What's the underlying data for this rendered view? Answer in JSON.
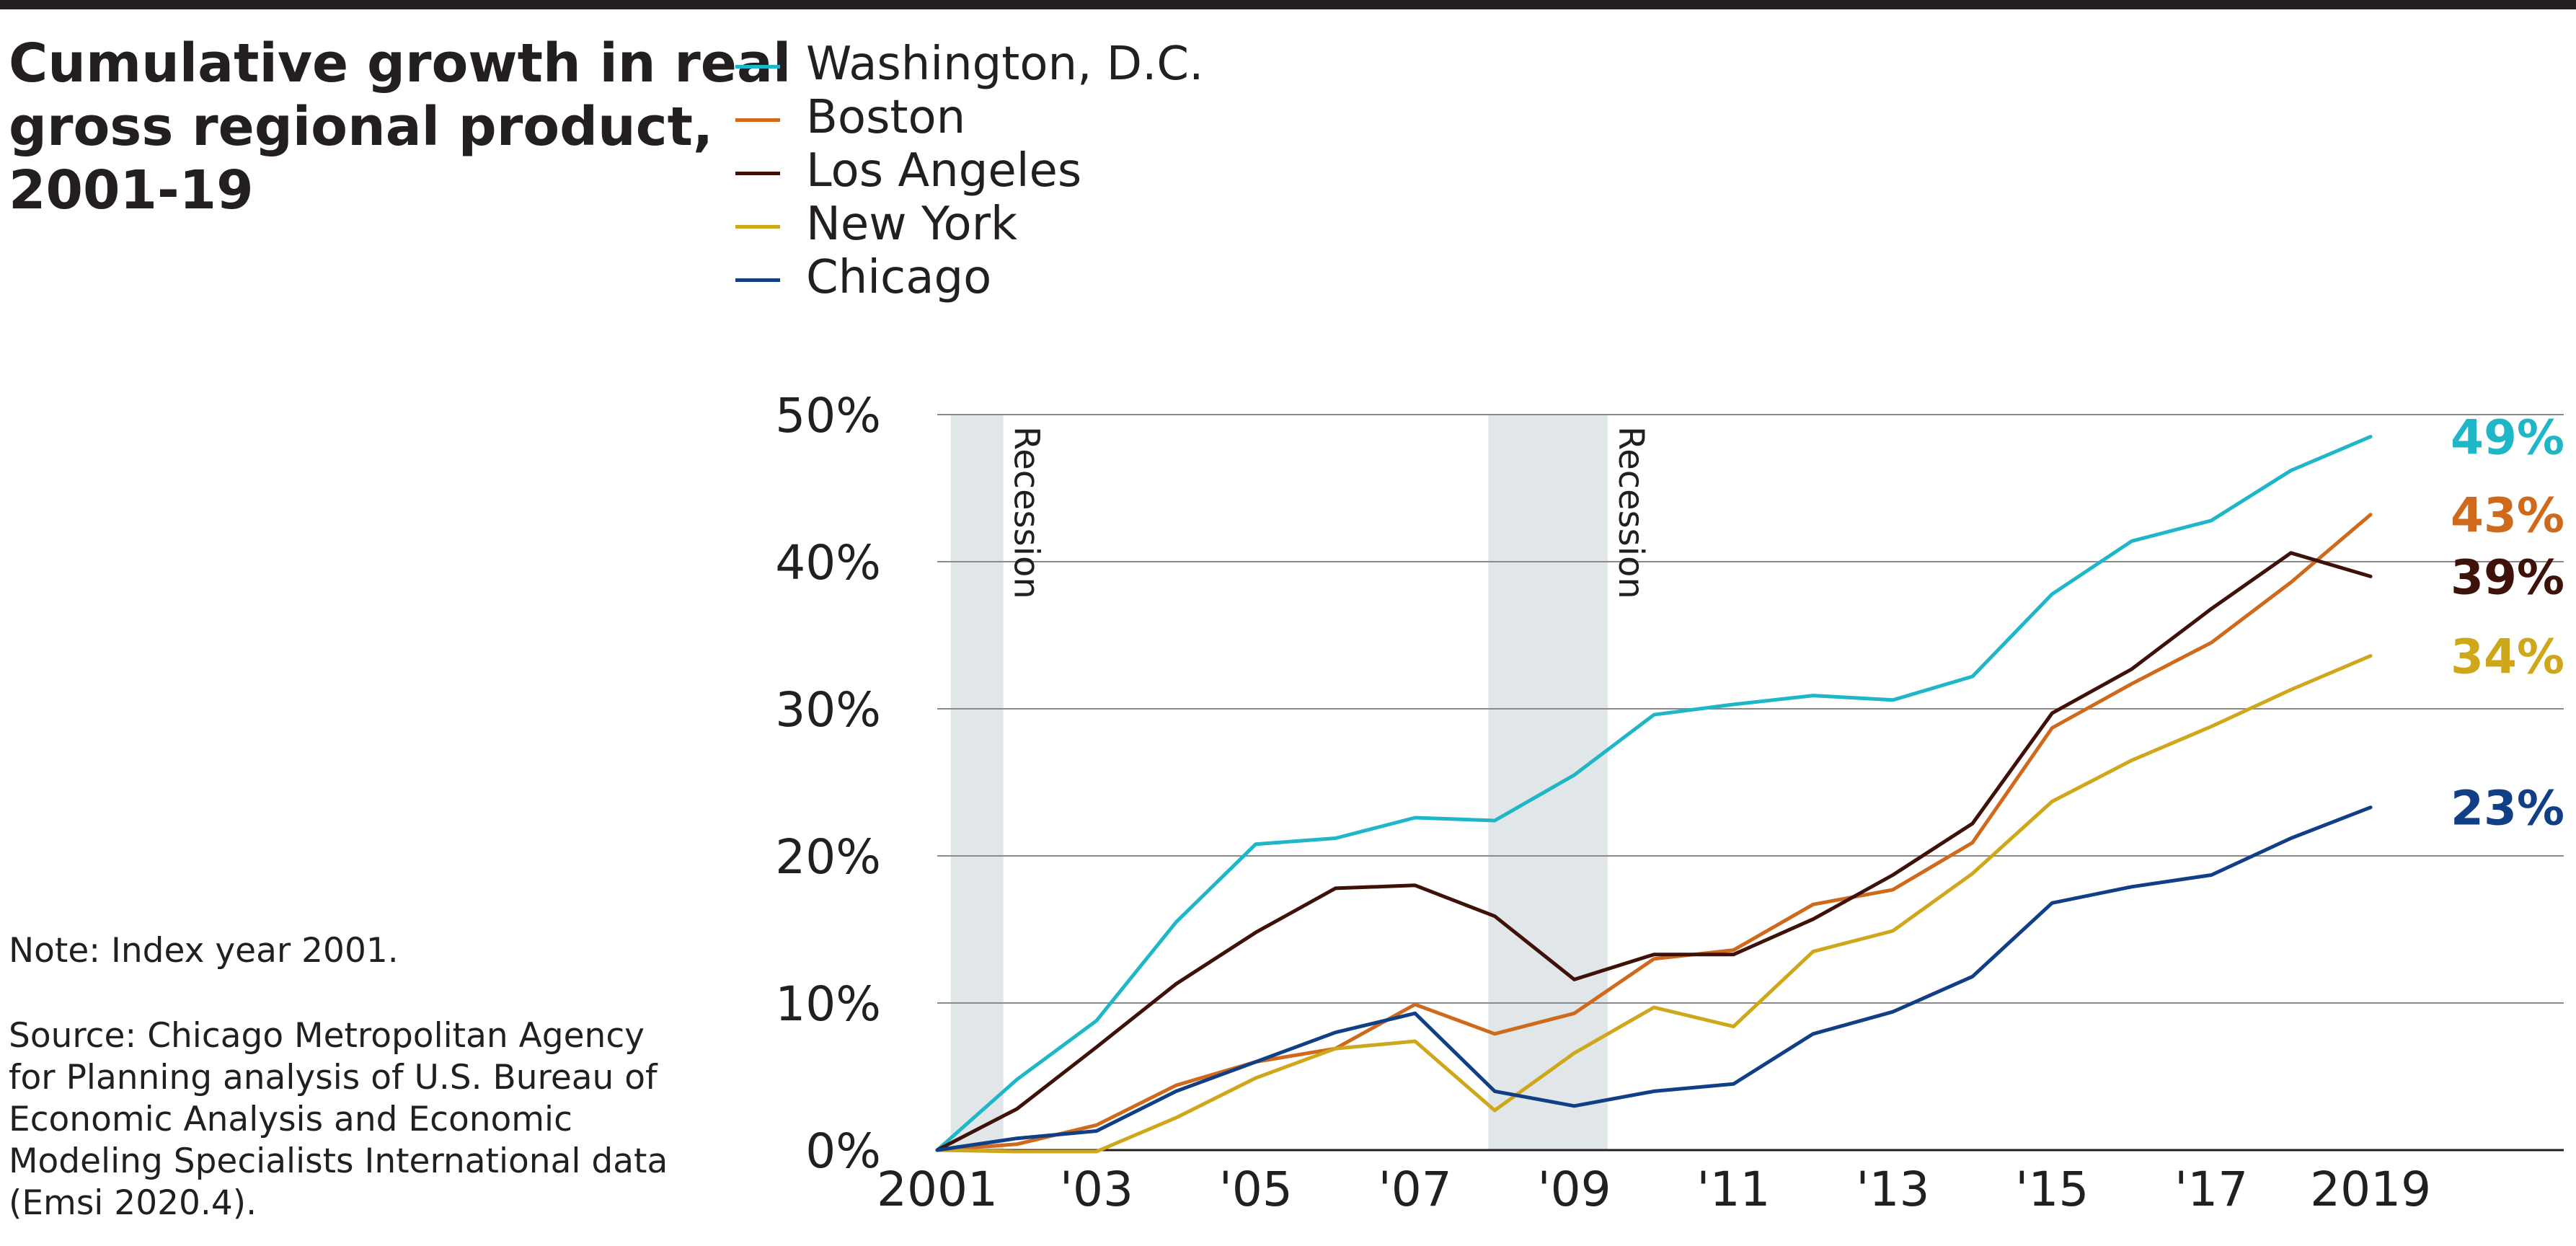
{
  "title_lines": [
    "Cumulative growth in real",
    "gross regional product,",
    "2001-19"
  ],
  "note": "Note: Index year 2001.",
  "source_lines": [
    "Source: Chicago Metropolitan Agency",
    "for Planning analysis of U.S. Bureau of",
    "Economic Analysis and Economic",
    "Modeling Specialists International data",
    "(Emsi 2020.4)."
  ],
  "chart_data": {
    "type": "line",
    "title": "Cumulative growth in real gross regional product, 2001-19",
    "xlabel": "",
    "ylabel": "",
    "x": [
      2001,
      2002,
      2003,
      2004,
      2005,
      2006,
      2007,
      2008,
      2009,
      2010,
      2011,
      2012,
      2013,
      2014,
      2015,
      2016,
      2017,
      2018,
      2019
    ],
    "x_tick_values": [
      2001,
      2003,
      2005,
      2007,
      2009,
      2011,
      2013,
      2015,
      2017,
      2019
    ],
    "x_tick_labels": [
      "2001",
      "'03",
      "'05",
      "'07",
      "'09",
      "'11",
      "'13",
      "'15",
      "'17",
      "2019"
    ],
    "xlim": [
      2001,
      2021
    ],
    "ylim": [
      0,
      50
    ],
    "y_ticks": [
      0,
      10,
      20,
      30,
      40,
      50
    ],
    "y_tick_labels": [
      "0%",
      "10%",
      "20%",
      "30%",
      "40%",
      "50%"
    ],
    "grid": true,
    "legend_position": "top-left",
    "recessions": [
      {
        "start": 2001.17,
        "end": 2001.83,
        "label": "Recession"
      },
      {
        "start": 2007.92,
        "end": 2009.42,
        "label": "Recession"
      }
    ],
    "series": [
      {
        "name": "Washington, D.C.",
        "color": "#1fb7c7",
        "end_label": "49%",
        "values": [
          0,
          4.8,
          8.8,
          15.5,
          20.8,
          21.2,
          22.6,
          22.4,
          25.5,
          29.6,
          30.3,
          30.9,
          30.6,
          32.2,
          37.8,
          41.4,
          42.8,
          46.2,
          48.5
        ]
      },
      {
        "name": "Boston",
        "color": "#cf6a1d",
        "end_label": "43%",
        "values": [
          0,
          0.4,
          1.7,
          4.4,
          6.0,
          6.9,
          9.9,
          7.9,
          9.3,
          13.0,
          13.6,
          16.7,
          17.7,
          20.9,
          28.7,
          31.7,
          34.5,
          38.6,
          43.2
        ]
      },
      {
        "name": "Los Angeles",
        "color": "#3e1109",
        "end_label": "39%",
        "values": [
          0,
          2.8,
          7.0,
          11.3,
          14.8,
          17.8,
          18.0,
          15.9,
          11.6,
          13.3,
          13.3,
          15.7,
          18.7,
          22.2,
          29.7,
          32.7,
          36.8,
          40.6,
          39.0
        ]
      },
      {
        "name": "New York",
        "color": "#cfa71a",
        "end_label": "34%",
        "values": [
          0,
          -0.1,
          -0.1,
          2.2,
          4.9,
          6.9,
          7.4,
          2.7,
          6.6,
          9.7,
          8.4,
          13.5,
          14.9,
          18.8,
          23.7,
          26.5,
          28.8,
          31.3,
          33.6
        ]
      },
      {
        "name": "Chicago",
        "color": "#103f86",
        "end_label": "23%",
        "values": [
          0,
          0.8,
          1.3,
          4.0,
          6.0,
          8.0,
          9.3,
          4.0,
          3.0,
          4.0,
          4.5,
          7.9,
          9.4,
          11.8,
          16.8,
          17.9,
          18.7,
          21.2,
          23.3
        ]
      }
    ]
  }
}
